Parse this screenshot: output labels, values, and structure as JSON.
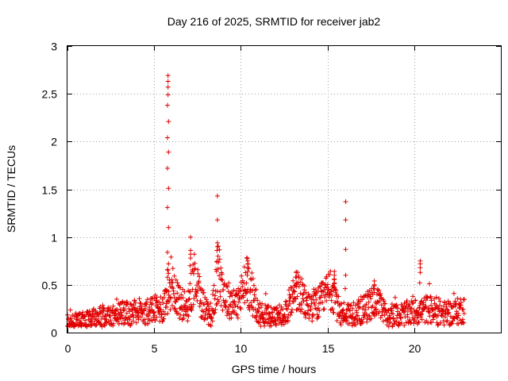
{
  "chart_data": {
    "type": "scatter",
    "title": "Day 216 of 2025, SRMTID for receiver jab2",
    "xlabel": "GPS time / hours",
    "ylabel": "SRMTID / TECUs",
    "xlim": [
      0,
      25
    ],
    "ylim": [
      0,
      3
    ],
    "xticks": [
      0,
      5,
      10,
      15,
      20
    ],
    "yticks": [
      0,
      0.5,
      1,
      1.5,
      2,
      2.5,
      3
    ],
    "xtick_labels": [
      "0",
      "5",
      "10",
      "15",
      "20"
    ],
    "ytick_labels": [
      "0",
      "0.5",
      "1",
      "1.5",
      "2",
      "2.5",
      "3"
    ],
    "grid": true,
    "marker": "+",
    "color": "#e00000",
    "data_extent_hours": [
      0,
      22.9
    ],
    "spikes": [
      {
        "x": 5.8,
        "values": [
          2.69,
          2.63,
          2.57,
          2.49,
          2.38,
          2.21,
          2.04,
          1.89,
          1.72,
          1.51,
          1.31,
          1.1,
          0.84,
          0.72,
          0.66,
          0.62,
          0.58
        ]
      },
      {
        "x": 7.1,
        "values": [
          1.0,
          0.86,
          0.82,
          0.78,
          0.7,
          0.62
        ]
      },
      {
        "x": 8.65,
        "values": [
          1.43,
          1.18,
          0.94,
          0.9,
          0.86,
          0.8,
          0.74
        ]
      },
      {
        "x": 10.4,
        "values": [
          0.75,
          0.72,
          0.68,
          0.64,
          0.6
        ]
      },
      {
        "x": 13.2,
        "values": [
          0.63,
          0.58,
          0.52,
          0.48
        ]
      },
      {
        "x": 15.4,
        "values": [
          0.64,
          0.6,
          0.56,
          0.52,
          0.48
        ]
      },
      {
        "x": 16.05,
        "values": [
          1.37,
          1.18,
          0.87,
          0.6,
          0.46
        ]
      },
      {
        "x": 17.7,
        "values": [
          0.54,
          0.5,
          0.46,
          0.42
        ]
      },
      {
        "x": 20.35,
        "values": [
          0.75,
          0.72,
          0.68,
          0.63,
          0.52
        ]
      }
    ],
    "baseline_profile": [
      {
        "x": 0.0,
        "y": 0.1
      },
      {
        "x": 1.0,
        "y": 0.13
      },
      {
        "x": 2.0,
        "y": 0.17
      },
      {
        "x": 3.0,
        "y": 0.2
      },
      {
        "x": 4.0,
        "y": 0.22
      },
      {
        "x": 5.0,
        "y": 0.24
      },
      {
        "x": 5.5,
        "y": 0.26
      },
      {
        "x": 6.0,
        "y": 0.55
      },
      {
        "x": 6.5,
        "y": 0.3
      },
      {
        "x": 7.0,
        "y": 0.28
      },
      {
        "x": 7.3,
        "y": 0.6
      },
      {
        "x": 7.8,
        "y": 0.3
      },
      {
        "x": 8.3,
        "y": 0.18
      },
      {
        "x": 8.7,
        "y": 0.6
      },
      {
        "x": 9.2,
        "y": 0.35
      },
      {
        "x": 9.8,
        "y": 0.3
      },
      {
        "x": 10.4,
        "y": 0.55
      },
      {
        "x": 11.0,
        "y": 0.2
      },
      {
        "x": 12.0,
        "y": 0.15
      },
      {
        "x": 12.7,
        "y": 0.25
      },
      {
        "x": 13.2,
        "y": 0.45
      },
      {
        "x": 13.8,
        "y": 0.28
      },
      {
        "x": 14.5,
        "y": 0.3
      },
      {
        "x": 15.2,
        "y": 0.45
      },
      {
        "x": 15.7,
        "y": 0.2
      },
      {
        "x": 16.5,
        "y": 0.2
      },
      {
        "x": 17.2,
        "y": 0.25
      },
      {
        "x": 17.7,
        "y": 0.35
      },
      {
        "x": 18.5,
        "y": 0.15
      },
      {
        "x": 19.5,
        "y": 0.2
      },
      {
        "x": 20.3,
        "y": 0.22
      },
      {
        "x": 20.8,
        "y": 0.25
      },
      {
        "x": 21.5,
        "y": 0.2
      },
      {
        "x": 22.2,
        "y": 0.2
      },
      {
        "x": 22.9,
        "y": 0.25
      }
    ]
  }
}
